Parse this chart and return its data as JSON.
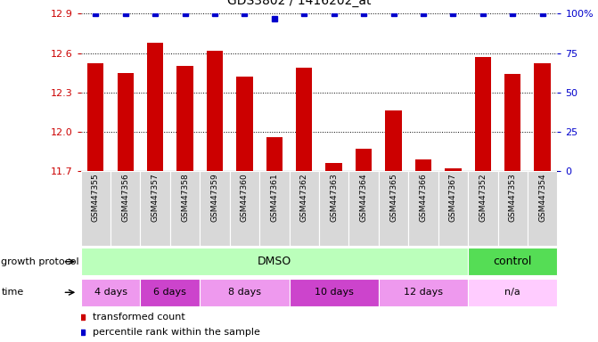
{
  "title": "GDS3802 / 1416202_at",
  "samples": [
    "GSM447355",
    "GSM447356",
    "GSM447357",
    "GSM447358",
    "GSM447359",
    "GSM447360",
    "GSM447361",
    "GSM447362",
    "GSM447363",
    "GSM447364",
    "GSM447365",
    "GSM447366",
    "GSM447367",
    "GSM447352",
    "GSM447353",
    "GSM447354"
  ],
  "bar_values": [
    12.52,
    12.45,
    12.68,
    12.5,
    12.62,
    12.42,
    11.96,
    12.49,
    11.76,
    11.87,
    12.16,
    11.79,
    11.72,
    12.57,
    12.44,
    12.52
  ],
  "percentile_values": [
    100,
    100,
    100,
    100,
    100,
    100,
    97,
    100,
    100,
    100,
    100,
    100,
    100,
    100,
    100,
    100
  ],
  "bar_color": "#cc0000",
  "percentile_color": "#0000cc",
  "ymin": 11.7,
  "ymax": 12.9,
  "yticks": [
    11.7,
    12.0,
    12.3,
    12.6,
    12.9
  ],
  "y2ticks": [
    0,
    25,
    50,
    75,
    100
  ],
  "y2labels": [
    "0",
    "25",
    "50",
    "75",
    "100%"
  ],
  "growth_protocol_row": {
    "label": "growth protocol",
    "groups": [
      {
        "text": "DMSO",
        "start": 0,
        "end": 12,
        "color": "#bbffbb"
      },
      {
        "text": "control",
        "start": 13,
        "end": 15,
        "color": "#55dd55"
      }
    ]
  },
  "time_row": {
    "label": "time",
    "groups": [
      {
        "text": "4 days",
        "start": 0,
        "end": 1,
        "color": "#ee99ee"
      },
      {
        "text": "6 days",
        "start": 2,
        "end": 3,
        "color": "#cc44cc"
      },
      {
        "text": "8 days",
        "start": 4,
        "end": 6,
        "color": "#ee99ee"
      },
      {
        "text": "10 days",
        "start": 7,
        "end": 9,
        "color": "#cc44cc"
      },
      {
        "text": "12 days",
        "start": 10,
        "end": 12,
        "color": "#ee99ee"
      },
      {
        "text": "n/a",
        "start": 13,
        "end": 15,
        "color": "#ffccff"
      }
    ]
  },
  "legend_items": [
    {
      "label": "transformed count",
      "color": "#cc0000"
    },
    {
      "label": "percentile rank within the sample",
      "color": "#0000cc"
    }
  ]
}
